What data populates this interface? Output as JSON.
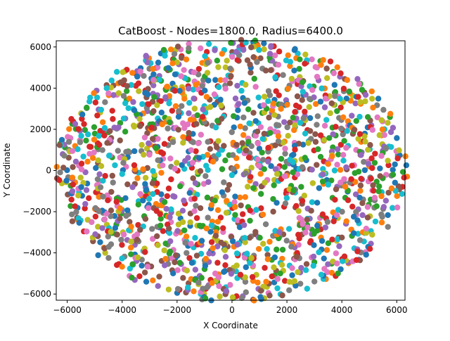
{
  "chart_data": {
    "type": "scatter",
    "title": "CatBoost - Nodes=1800.0, Radius=6400.0",
    "xlabel": "X Coordinate",
    "ylabel": "Y Coordinate",
    "xlim": [
      -6400,
      6300
    ],
    "ylim": [
      -6300,
      6300
    ],
    "grid": false,
    "legend": "none",
    "xticks": [
      -6000,
      -4000,
      -2000,
      0,
      2000,
      4000,
      6000
    ],
    "yticks": [
      -6000,
      -4000,
      -2000,
      0,
      2000,
      4000,
      6000
    ],
    "xtick_labels": [
      "−6000",
      "−4000",
      "−2000",
      "0",
      "2000",
      "4000",
      "6000"
    ],
    "ytick_labels": [
      "−6000",
      "−4000",
      "−2000",
      "0",
      "2000",
      "4000",
      "6000"
    ],
    "point_count": 1800,
    "radius": 6400.0,
    "palette": [
      "#1f77b4",
      "#ff7f0e",
      "#2ca02c",
      "#d62728",
      "#9467bd",
      "#8c564b",
      "#e377c2",
      "#7f7f7f",
      "#bcbd22",
      "#17becf"
    ]
  }
}
